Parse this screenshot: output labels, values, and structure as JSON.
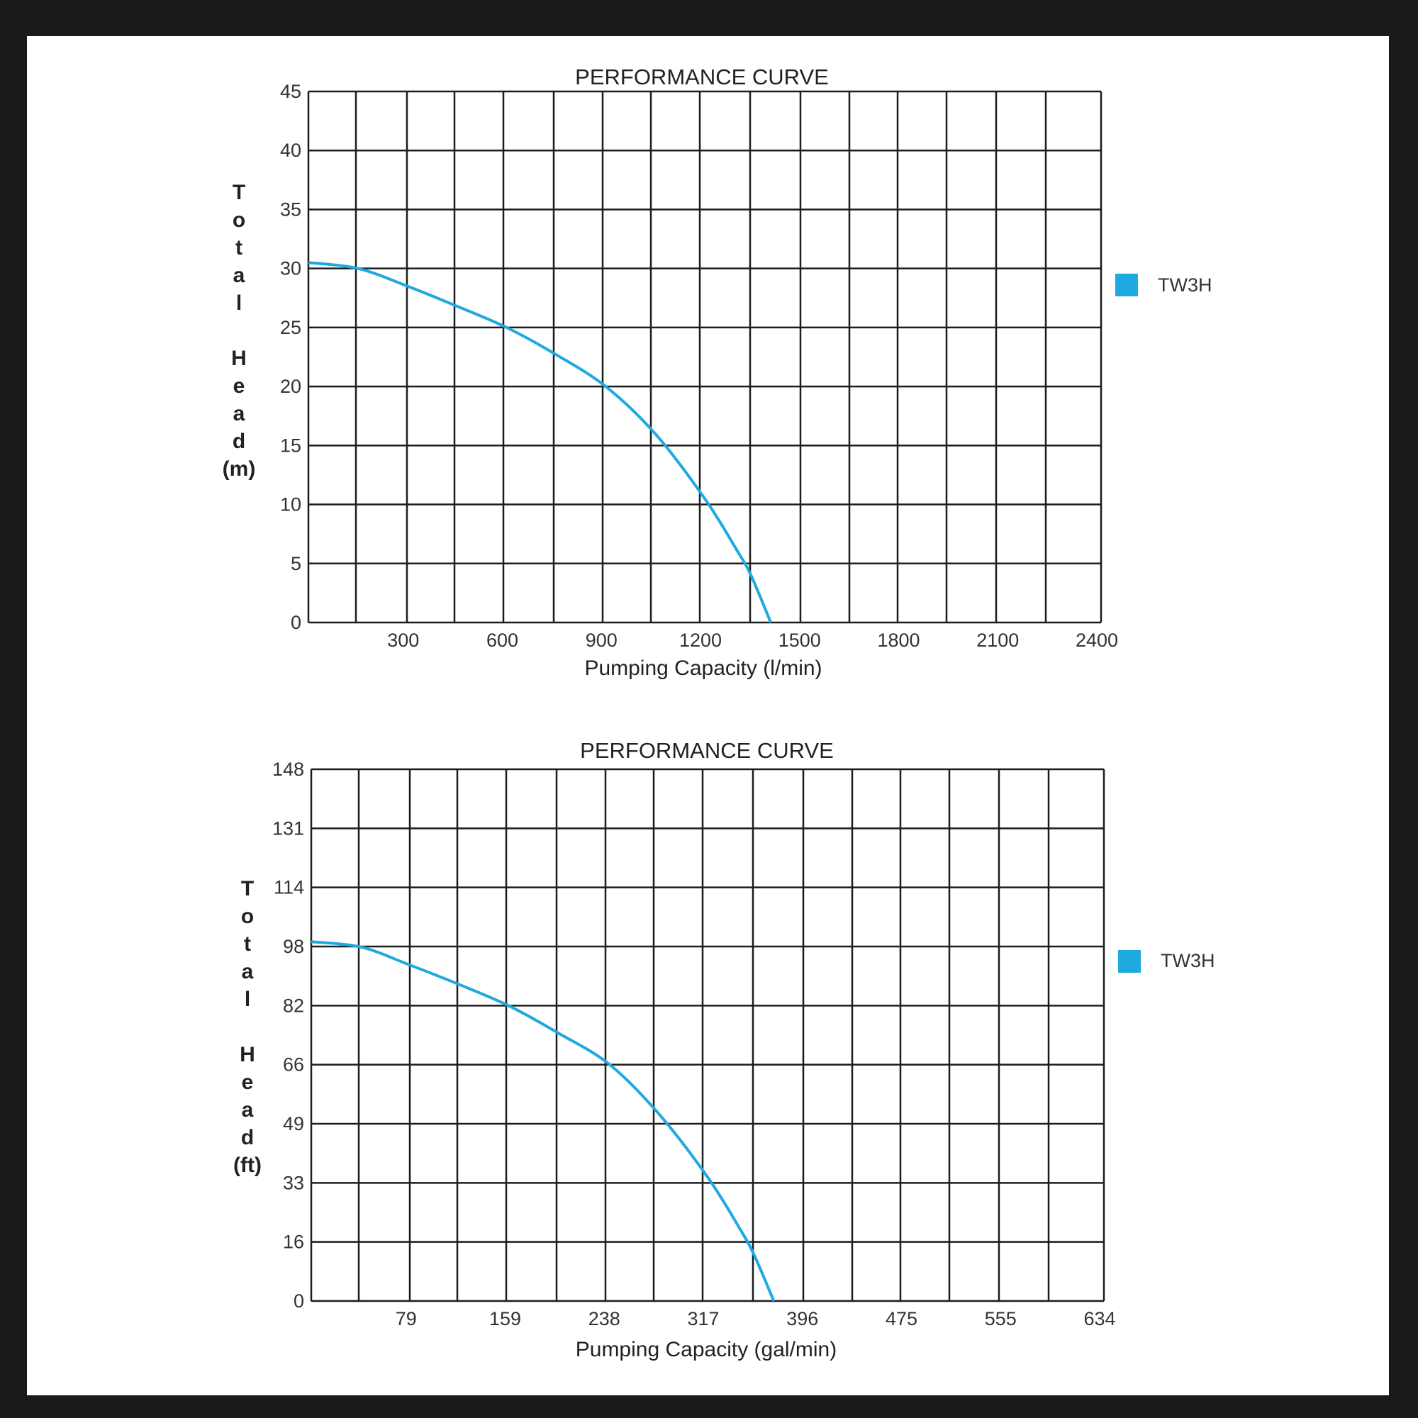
{
  "colors": {
    "curve": "#1fa9e1",
    "grid": "#1c1c1c",
    "page": "#ffffff",
    "frame": "#1a1a1a"
  },
  "chart_data": [
    {
      "type": "line",
      "title": "PERFORMANCE CURVE",
      "xlabel": "Pumping Capacity (l/min)",
      "ylabel": "Total Head (m)",
      "ylabel_lines": [
        "T",
        "o",
        "t",
        "a",
        "l",
        "",
        "H",
        "e",
        "a",
        "d",
        "(m)"
      ],
      "x_ticks": [
        "300",
        "600",
        "900",
        "1200",
        "1500",
        "1800",
        "2100",
        "2400"
      ],
      "y_ticks": [
        "0",
        "5",
        "10",
        "15",
        "20",
        "25",
        "30",
        "35",
        "40",
        "45"
      ],
      "xlim": [
        0,
        2400
      ],
      "ylim": [
        0,
        45
      ],
      "grid": true,
      "legend_position": "right",
      "series": [
        {
          "name": "TW3H",
          "color": "#1fa9e1",
          "x": [
            0,
            150,
            300,
            450,
            600,
            750,
            900,
            1050,
            1200,
            1300,
            1340,
            1400
          ],
          "y": [
            30.5,
            30,
            28.5,
            26.8,
            25,
            22.7,
            20,
            16,
            10.5,
            6,
            4,
            0
          ]
        }
      ]
    },
    {
      "type": "line",
      "title": "PERFORMANCE CURVE",
      "xlabel": "Pumping Capacity (gal/min)",
      "ylabel": "Total Head (ft)",
      "ylabel_lines": [
        "T",
        "o",
        "t",
        "a",
        "l",
        "",
        "H",
        "e",
        "a",
        "d",
        "(ft)"
      ],
      "x_ticks": [
        "79",
        "159",
        "238",
        "317",
        "396",
        "475",
        "555",
        "634"
      ],
      "y_ticks": [
        "0",
        "16",
        "33",
        "49",
        "66",
        "82",
        "98",
        "114",
        "131",
        "148"
      ],
      "xlim": [
        0,
        634
      ],
      "ylim": [
        0,
        148
      ],
      "grid": true,
      "legend_position": "right",
      "series": [
        {
          "name": "TW3H",
          "color": "#1fa9e1",
          "x": [
            0,
            40,
            79,
            119,
            159,
            198,
            238,
            277,
            317,
            343,
            354,
            370
          ],
          "y": [
            100,
            98.5,
            93.5,
            88,
            82,
            74.5,
            66,
            52.5,
            34.5,
            20,
            13,
            0
          ]
        }
      ]
    }
  ]
}
